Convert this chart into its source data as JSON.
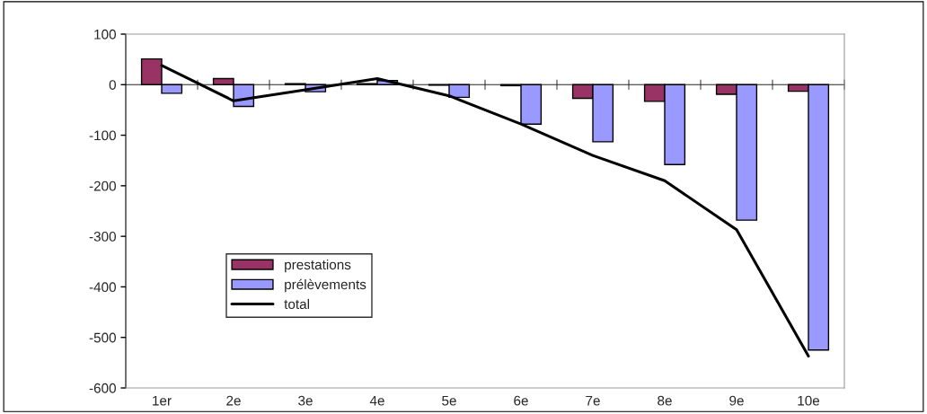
{
  "chart_data": {
    "type": "bar",
    "categories": [
      "1er",
      "2e",
      "3e",
      "4e",
      "5e",
      "6e",
      "7e",
      "8e",
      "9e",
      "10e"
    ],
    "series": [
      {
        "name": "prestations",
        "color": "#993366",
        "values": [
          51,
          12,
          2,
          2,
          -1,
          -2,
          -27,
          -33,
          -19,
          -13
        ]
      },
      {
        "name": "prélèvements",
        "color": "#9999ff",
        "values": [
          -17,
          -43,
          -14,
          8,
          -25,
          -78,
          -113,
          -158,
          -268,
          -525
        ]
      },
      {
        "name": "total",
        "type": "line",
        "color": "#000000",
        "values": [
          38,
          -32,
          -10,
          12,
          -22,
          -78,
          -140,
          -190,
          -287,
          -537
        ]
      }
    ],
    "ylim": [
      -600,
      100
    ],
    "yticks": [
      -600,
      -500,
      -400,
      -300,
      -200,
      -100,
      0,
      100
    ],
    "legend": "lower left"
  }
}
